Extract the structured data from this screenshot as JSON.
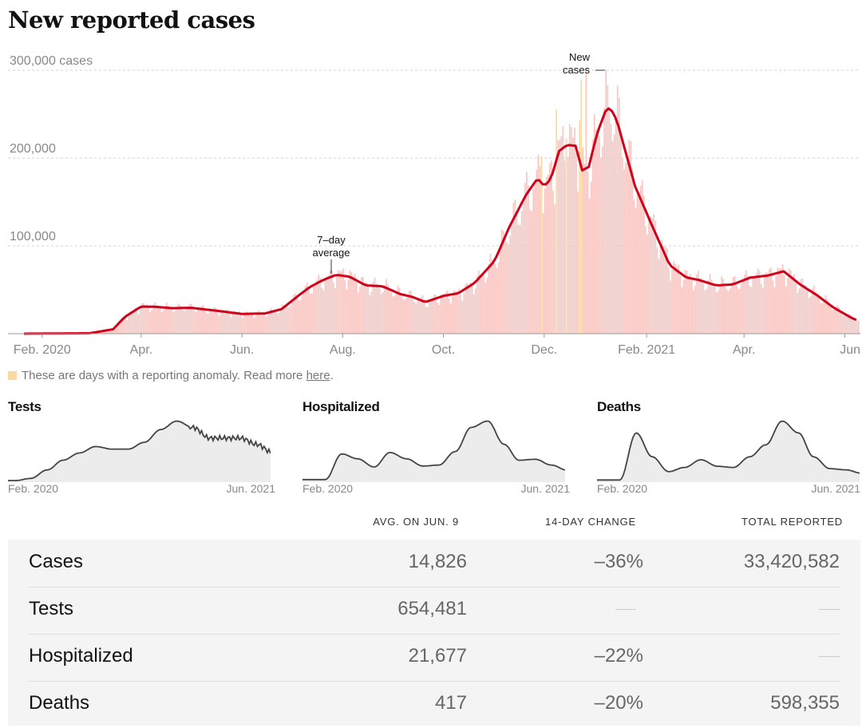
{
  "title": "New reported cases",
  "chart_data": {
    "type": "bar",
    "title": "New reported cases",
    "y_ticks": [
      "300,000 cases",
      "200,000",
      "100,000"
    ],
    "y_tick_values": [
      300000,
      200000,
      100000
    ],
    "ylim": [
      0,
      300000
    ],
    "x_tick_labels": [
      "Feb. 2020",
      "Apr.",
      "Jun.",
      "Aug.",
      "Oct.",
      "Dec.",
      "Feb. 2021",
      "Apr.",
      "Jun"
    ],
    "annotations": {
      "avg_line1": "7–day",
      "avg_line2": "average",
      "new_line1": "New",
      "new_line2": "cases"
    },
    "grid": true,
    "series": [
      {
        "name": "7-day average",
        "type": "line",
        "color": "#d0021b",
        "x": [
          "2020-01-21",
          "2020-03-01",
          "2020-03-15",
          "2020-03-22",
          "2020-04-01",
          "2020-04-10",
          "2020-04-20",
          "2020-05-01",
          "2020-05-15",
          "2020-06-01",
          "2020-06-15",
          "2020-06-25",
          "2020-07-05",
          "2020-07-12",
          "2020-07-20",
          "2020-07-28",
          "2020-08-05",
          "2020-08-15",
          "2020-08-25",
          "2020-09-05",
          "2020-09-12",
          "2020-09-20",
          "2020-10-01",
          "2020-10-10",
          "2020-10-20",
          "2020-11-01",
          "2020-11-10",
          "2020-11-20",
          "2020-11-27",
          "2020-12-01",
          "2020-12-05",
          "2020-12-10",
          "2020-12-15",
          "2020-12-20",
          "2020-12-24",
          "2020-12-28",
          "2021-01-02",
          "2021-01-08",
          "2021-01-12",
          "2021-01-15",
          "2021-01-25",
          "2021-02-05",
          "2021-02-15",
          "2021-02-25",
          "2021-03-05",
          "2021-03-15",
          "2021-03-25",
          "2021-04-05",
          "2021-04-15",
          "2021-04-25",
          "2021-05-05",
          "2021-05-15",
          "2021-05-25",
          "2021-06-05",
          "2021-06-09"
        ],
        "values": [
          0,
          500,
          5000,
          19000,
          31000,
          30500,
          29000,
          29500,
          26500,
          22500,
          23000,
          28000,
          43000,
          53000,
          61000,
          67000,
          65000,
          55000,
          54000,
          45000,
          42000,
          36000,
          43000,
          46000,
          58000,
          83000,
          122000,
          158000,
          177000,
          168000,
          176000,
          208000,
          215000,
          214000,
          186000,
          190000,
          228000,
          258000,
          252000,
          236000,
          168000,
          120000,
          78000,
          64000,
          61000,
          55000,
          56000,
          64000,
          66000,
          71000,
          56000,
          44000,
          30000,
          18000,
          14826
        ]
      },
      {
        "name": "New cases",
        "type": "bar",
        "color": "#f7c6c2",
        "anomaly_color": "#fbd9a1",
        "x_range": [
          "2020-01-21",
          "2021-06-09"
        ],
        "values_follow": "7-day average with day-of-week variation",
        "peak": 300000
      }
    ],
    "legend_note": {
      "text": "These are days with a reporting anomaly. Read more ",
      "link": "here",
      "end": "."
    }
  },
  "small_charts": [
    {
      "title": "Tests",
      "x_start": "Feb. 2020",
      "x_end": "Jun. 2021",
      "x": [
        "2020-02",
        "2020-03",
        "2020-04",
        "2020-05",
        "2020-06",
        "2020-07",
        "2020-08",
        "2020-09",
        "2020-10",
        "2020-11",
        "2020-12",
        "2021-01",
        "2021-02",
        "2021-03",
        "2021-04",
        "2021-05",
        "2021-06"
      ],
      "values": [
        0,
        5,
        25,
        48,
        65,
        80,
        74,
        74,
        90,
        120,
        140,
        125,
        100,
        100,
        100,
        85,
        65
      ]
    },
    {
      "title": "Hospitalized",
      "x_start": "Feb. 2020",
      "x_end": "Jun. 2021",
      "x": [
        "2020-03",
        "2020-04",
        "2020-05",
        "2020-06",
        "2020-07",
        "2020-08",
        "2020-09",
        "2020-10",
        "2020-11",
        "2020-12",
        "2021-01",
        "2021-02",
        "2021-03",
        "2021-04",
        "2021-05",
        "2021-06"
      ],
      "values": [
        2,
        55,
        45,
        28,
        58,
        45,
        30,
        32,
        60,
        110,
        123,
        75,
        42,
        44,
        32,
        21
      ]
    },
    {
      "title": "Deaths",
      "x_start": "Feb. 2020",
      "x_end": "Jun. 2021",
      "x": [
        "2020-03",
        "2020-04",
        "2020-05",
        "2020-06",
        "2020-07",
        "2020-08",
        "2020-09",
        "2020-10",
        "2020-11",
        "2020-12",
        "2021-01",
        "2021-02",
        "2021-03",
        "2021-04",
        "2021-05",
        "2021-06"
      ],
      "values": [
        1,
        80,
        40,
        15,
        22,
        35,
        24,
        22,
        40,
        60,
        100,
        80,
        40,
        20,
        18,
        12
      ]
    }
  ],
  "table": {
    "headers": {
      "avg": "AVG. ON JUN. 9",
      "change": "14-DAY CHANGE",
      "total": "TOTAL REPORTED"
    },
    "rows": [
      {
        "name": "Cases",
        "avg": "14,826",
        "change": "–36%",
        "total": "33,420,582"
      },
      {
        "name": "Tests",
        "avg": "654,481",
        "change": "",
        "total": ""
      },
      {
        "name": "Hospitalized",
        "avg": "21,677",
        "change": "–22%",
        "total": ""
      },
      {
        "name": "Deaths",
        "avg": "417",
        "change": "–20%",
        "total": "598,355"
      }
    ]
  }
}
